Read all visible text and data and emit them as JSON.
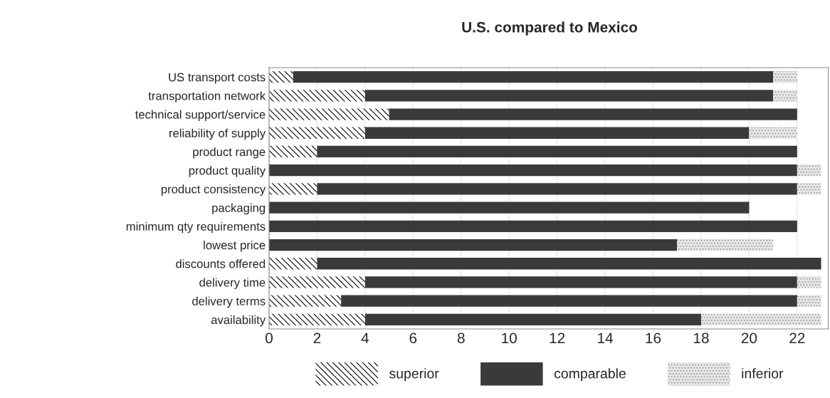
{
  "chart_data": {
    "type": "bar",
    "orientation": "horizontal",
    "stacked": true,
    "title": "U.S. compared to Mexico",
    "categories": [
      "US transport costs",
      "transportation network",
      "technical support/service",
      "reliability of supply",
      "product range",
      "product quality",
      "product consistency",
      "packaging",
      "minimum qty requirements",
      "lowest price",
      "discounts offered",
      "delivery time",
      "delivery terms",
      "availability"
    ],
    "series": [
      {
        "name": "superior",
        "color": "#ffffff",
        "values": [
          1,
          4,
          5,
          4,
          2,
          0,
          2,
          0,
          0,
          0,
          2,
          4,
          3,
          4
        ]
      },
      {
        "name": "comparable",
        "color": "#3a3a3a",
        "values": [
          20,
          17,
          17,
          16,
          20,
          22,
          20,
          20,
          22,
          17,
          21,
          18,
          19,
          14
        ]
      },
      {
        "name": "inferior",
        "color": "#e6e6e6",
        "values": [
          1,
          1,
          0,
          2,
          0,
          1,
          1,
          0,
          0,
          4,
          0,
          1,
          1,
          5
        ]
      }
    ],
    "xlim": [
      0,
      23.3
    ],
    "xticks": [
      0,
      2,
      4,
      6,
      8,
      10,
      12,
      14,
      16,
      18,
      20,
      22
    ],
    "grid": "x",
    "legend": "bottom"
  }
}
